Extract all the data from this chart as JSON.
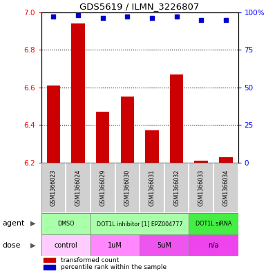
{
  "title": "GDS5619 / ILMN_3226807",
  "samples": [
    "GSM1366023",
    "GSM1366024",
    "GSM1366029",
    "GSM1366030",
    "GSM1366031",
    "GSM1366032",
    "GSM1366033",
    "GSM1366034"
  ],
  "bar_values": [
    6.61,
    6.94,
    6.47,
    6.55,
    6.37,
    6.67,
    6.21,
    6.23
  ],
  "percentile_values": [
    97,
    98,
    96,
    97,
    96,
    97,
    95,
    95
  ],
  "ylim_left": [
    6.2,
    7.0
  ],
  "ylim_right": [
    0,
    100
  ],
  "yticks_left": [
    6.2,
    6.4,
    6.6,
    6.8,
    7.0
  ],
  "yticks_right": [
    0,
    25,
    50,
    75,
    100
  ],
  "bar_color": "#cc0000",
  "dot_color": "#0000cc",
  "agent_groups": [
    {
      "label": "DMSO",
      "start": 0,
      "end": 2,
      "color": "#aaffaa"
    },
    {
      "label": "DOT1L inhibitor [1] EPZ004777",
      "start": 2,
      "end": 6,
      "color": "#aaffaa"
    },
    {
      "label": "DOT1L siRNA",
      "start": 6,
      "end": 8,
      "color": "#44ee44"
    }
  ],
  "dose_groups": [
    {
      "label": "control",
      "start": 0,
      "end": 2,
      "color": "#ffccff"
    },
    {
      "label": "1uM",
      "start": 2,
      "end": 4,
      "color": "#ff88ff"
    },
    {
      "label": "5uM",
      "start": 4,
      "end": 6,
      "color": "#ee55ee"
    },
    {
      "label": "n/a",
      "start": 6,
      "end": 8,
      "color": "#ee44ee"
    }
  ],
  "bar_width": 0.55,
  "base_value": 6.2,
  "gsm_bg": "#d0d0d0",
  "fig_bg": "#ffffff"
}
